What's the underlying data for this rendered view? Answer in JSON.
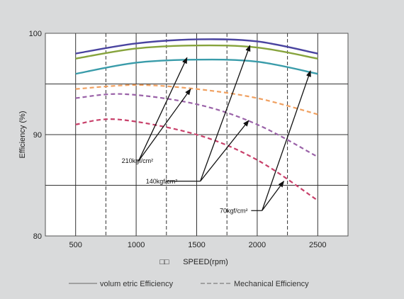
{
  "chart_data": {
    "type": "line",
    "title": "",
    "xlabel_prefix": "□□",
    "xlabel": "SPEED(rpm)",
    "ylabel": "Efficiency (%)",
    "xlim": [
      250,
      2750
    ],
    "ylim": [
      80,
      100
    ],
    "x_ticks": [
      500,
      1000,
      1500,
      2000,
      2500
    ],
    "y_ticks": [
      80,
      90,
      100
    ],
    "grid": {
      "vertical_solid": [
        500,
        1000,
        1500,
        2000,
        2500
      ],
      "vertical_dashed": [
        750,
        1250,
        1750,
        2250
      ],
      "horizontal_solid": [
        85,
        90,
        95
      ]
    },
    "series": [
      {
        "style": "solid",
        "color": "#4a44a0",
        "x": [
          500,
          1000,
          1500,
          2000,
          2500
        ],
        "y": [
          98.0,
          99.0,
          99.4,
          99.2,
          98.0
        ]
      },
      {
        "style": "solid",
        "color": "#86a33c",
        "x": [
          500,
          1000,
          1500,
          2000,
          2500
        ],
        "y": [
          97.5,
          98.5,
          98.8,
          98.6,
          97.5
        ]
      },
      {
        "style": "solid",
        "color": "#3a9caa",
        "x": [
          500,
          1000,
          1500,
          2000,
          2500
        ],
        "y": [
          96.0,
          97.1,
          97.4,
          97.2,
          96.0
        ]
      },
      {
        "style": "dashed",
        "color": "#f0a060",
        "x": [
          500,
          1000,
          1500,
          2000,
          2500
        ],
        "y": [
          94.5,
          94.9,
          94.5,
          93.6,
          92.0
        ]
      },
      {
        "style": "dashed",
        "color": "#9a62a8",
        "x": [
          500,
          900,
          1500,
          2000,
          2500
        ],
        "y": [
          93.6,
          94.0,
          93.0,
          91.0,
          87.8
        ]
      },
      {
        "style": "dashed",
        "color": "#c8406a",
        "x": [
          500,
          850,
          1500,
          2000,
          2500
        ],
        "y": [
          91.0,
          91.5,
          90.0,
          87.5,
          83.5
        ]
      }
    ],
    "annotations": [
      {
        "label": "210kgf/cm²",
        "label_x": 880,
        "label_y": 87.4,
        "elbow": [
          [
            1000,
            87.4
          ],
          [
            1020,
            87.4
          ]
        ],
        "targets": [
          [
            1420,
            97.6
          ],
          [
            1450,
            94.5
          ]
        ]
      },
      {
        "label": "140kgf/cm²",
        "label_x": 1080,
        "label_y": 85.4,
        "elbow": [
          [
            1250,
            85.4
          ],
          [
            1530,
            85.4
          ]
        ],
        "targets": [
          [
            1940,
            98.8
          ],
          [
            1930,
            91.4
          ]
        ]
      },
      {
        "label": "70kgf/cm²",
        "label_x": 1690,
        "label_y": 82.5,
        "elbow": [
          [
            1950,
            82.5
          ],
          [
            2040,
            82.5
          ]
        ],
        "targets": [
          [
            2440,
            96.3
          ],
          [
            2220,
            85.4
          ]
        ]
      }
    ],
    "legend": {
      "placement": "bottom",
      "items": [
        {
          "style": "solid",
          "label": "volum etric Efficiency"
        },
        {
          "style": "dashed",
          "label": "Mechanical Efficiency"
        }
      ]
    }
  }
}
